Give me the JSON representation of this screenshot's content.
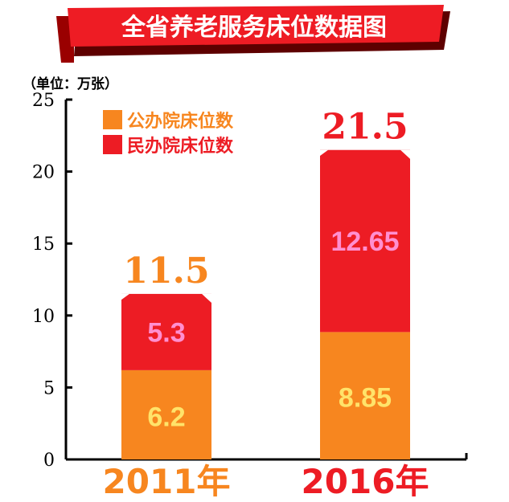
{
  "title": "全省养老服务床位数据图",
  "unit_label": "（单位：万张）",
  "colors": {
    "public": "#f7861f",
    "private": "#ed1c24",
    "total_2011": "#f7861f",
    "total_2016": "#ed1c24",
    "value_public": "#ffe36a",
    "value_private": "#ff8fd0",
    "axis": "#000000"
  },
  "chart_data": {
    "type": "bar",
    "stacked": true,
    "categories": [
      "2011年",
      "2016年"
    ],
    "series": [
      {
        "name": "公办院床位数",
        "values": [
          6.2,
          8.85
        ]
      },
      {
        "name": "民办院床位数",
        "values": [
          5.3,
          12.65
        ]
      }
    ],
    "totals": [
      11.5,
      21.5
    ],
    "ylim": [
      0,
      25
    ],
    "yticks": [
      0,
      5,
      10,
      15,
      20,
      25
    ],
    "legend_position": "top-left",
    "grid": false
  }
}
